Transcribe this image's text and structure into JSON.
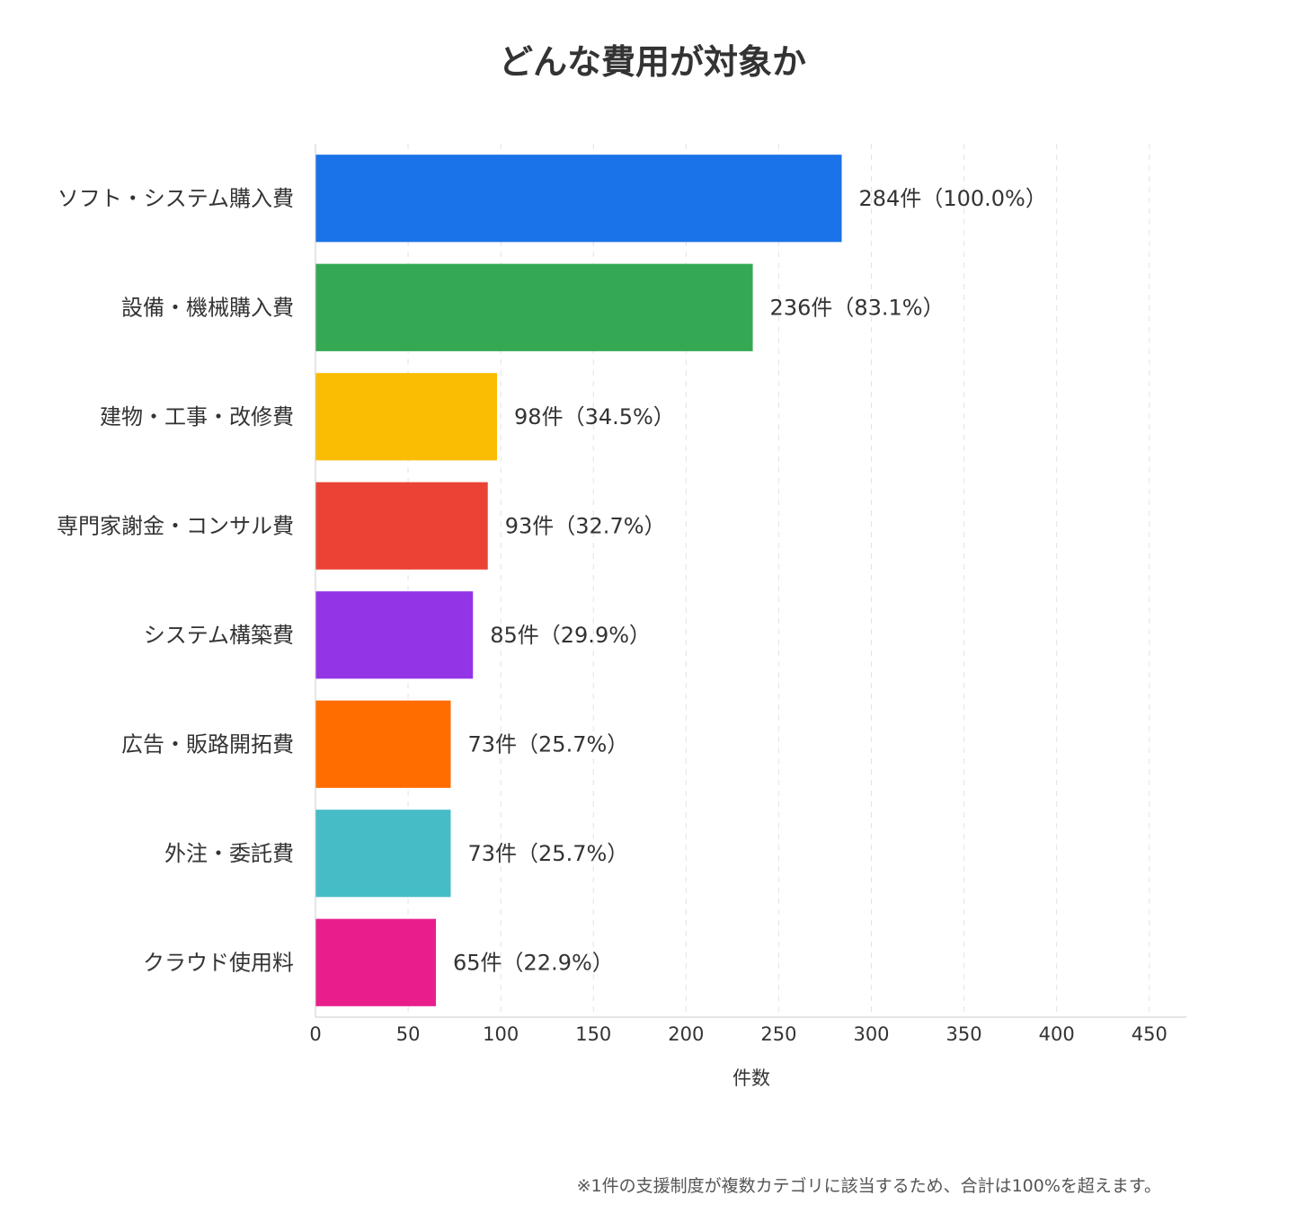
{
  "chart_data": {
    "type": "bar",
    "orientation": "horizontal",
    "title": "どんな費用が対象か",
    "xlabel": "件数",
    "ylabel": "",
    "xlim": [
      0,
      470
    ],
    "ticks": [
      0,
      50,
      100,
      150,
      200,
      250,
      300,
      350,
      400,
      450
    ],
    "grid": "vertical-dashed",
    "categories": [
      "ソフト・システム購入費",
      "設備・機械購入費",
      "建物・工事・改修費",
      "専門家謝金・コンサル費",
      "システム構築費",
      "広告・販路開拓費",
      "外注・委託費",
      "クラウド使用料"
    ],
    "values": [
      284,
      236,
      98,
      93,
      85,
      73,
      73,
      65
    ],
    "data_labels": [
      "284件（100.0%）",
      "236件（83.1%）",
      "98件（34.5%）",
      "93件（32.7%）",
      "85件（29.9%）",
      "73件（25.7%）",
      "73件（25.7%）",
      "65件（22.9%）"
    ],
    "colors": [
      "#1A73E8",
      "#34A853",
      "#FBBC04",
      "#EA4335",
      "#9334E6",
      "#FF6D01",
      "#46BDC6",
      "#E91E8C"
    ],
    "footnote": "※1件の支援制度が複数カテゴリに該当するため、合計は100%を超えます。"
  }
}
